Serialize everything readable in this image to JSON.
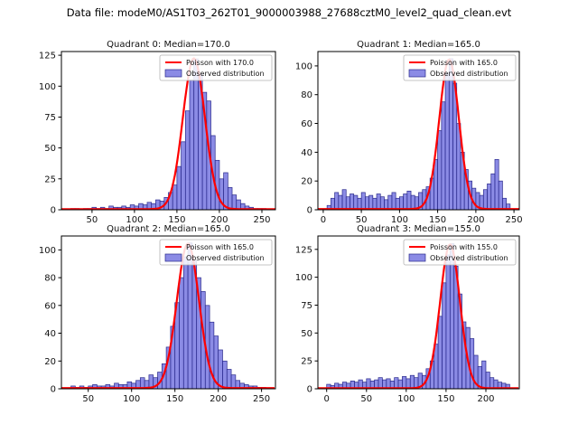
{
  "figure_title": "Data file: modeM0/AS1T03_262T01_9000003988_27688cztM0_level2_quad_clean.evt",
  "colors": {
    "hist_fill": "rgba(100,100,220,0.75)",
    "hist_edge": "#2a2a8c",
    "curve": "#ff0000",
    "axis": "#000000",
    "legend_border": "#b3b3b3"
  },
  "chart_data": [
    {
      "type": "bar",
      "title": "Quadrant 0: Median=170.0",
      "median": 170.0,
      "legend": [
        "Poisson with 170.0",
        "Observed distribution"
      ],
      "xlabel": "",
      "ylabel": "",
      "xlim": [
        14,
        266
      ],
      "ylim": [
        0,
        128
      ],
      "xticks": [
        50,
        100,
        150,
        200,
        250
      ],
      "yticks": [
        0,
        25,
        50,
        75,
        100,
        125
      ],
      "bins": {
        "start": 25,
        "width": 5,
        "counts": [
          1,
          1,
          0,
          1,
          1,
          2,
          1,
          2,
          1,
          3,
          2,
          2,
          3,
          2,
          4,
          3,
          5,
          4,
          6,
          5,
          8,
          7,
          10,
          14,
          20,
          35,
          55,
          80,
          105,
          122,
          110,
          95,
          88,
          60,
          40,
          25,
          30,
          18,
          12,
          8,
          5,
          3,
          2,
          1,
          1,
          1
        ]
      },
      "curve": {
        "center": 170,
        "sigma": 13.0,
        "amplitude": 122,
        "baseline": 0.5
      }
    },
    {
      "type": "bar",
      "title": "Quadrant 1: Median=165.0",
      "median": 165.0,
      "legend": [
        "Poisson with 165.0",
        "Observed distribution"
      ],
      "xlabel": "",
      "ylabel": "",
      "xlim": [
        -7,
        257
      ],
      "ylim": [
        0,
        110
      ],
      "xticks": [
        0,
        50,
        100,
        150,
        200,
        250
      ],
      "yticks": [
        0,
        20,
        40,
        60,
        80,
        100
      ],
      "bins": {
        "start": 5,
        "width": 5,
        "counts": [
          3,
          8,
          12,
          10,
          14,
          9,
          11,
          10,
          8,
          12,
          9,
          10,
          8,
          11,
          9,
          7,
          10,
          12,
          8,
          9,
          11,
          13,
          10,
          9,
          12,
          14,
          16,
          22,
          35,
          55,
          75,
          95,
          105,
          88,
          60,
          40,
          28,
          20,
          15,
          12,
          10,
          14,
          18,
          25,
          35,
          20,
          8,
          4
        ]
      },
      "curve": {
        "center": 165,
        "sigma": 12.8,
        "amplitude": 104,
        "baseline": 0.5
      }
    },
    {
      "type": "bar",
      "title": "Quadrant 2: Median=165.0",
      "median": 165.0,
      "legend": [
        "Poisson with 165.0",
        "Observed distribution"
      ],
      "xlabel": "",
      "ylabel": "",
      "xlim": [
        19,
        266
      ],
      "ylim": [
        0,
        110
      ],
      "xticks": [
        50,
        100,
        150,
        200,
        250
      ],
      "yticks": [
        0,
        20,
        40,
        60,
        80,
        100
      ],
      "bins": {
        "start": 30,
        "width": 5,
        "counts": [
          2,
          1,
          2,
          1,
          2,
          3,
          2,
          2,
          3,
          2,
          4,
          3,
          3,
          5,
          4,
          6,
          8,
          6,
          10,
          8,
          12,
          18,
          30,
          45,
          62,
          80,
          95,
          105,
          92,
          80,
          70,
          60,
          48,
          38,
          28,
          20,
          14,
          10,
          6,
          4,
          3,
          2,
          2,
          1,
          1
        ]
      },
      "curve": {
        "center": 165,
        "sigma": 12.8,
        "amplitude": 104,
        "baseline": 0.5
      }
    },
    {
      "type": "bar",
      "title": "Quadrant 3: Median=155.0",
      "median": 155.0,
      "legend": [
        "Poisson with 155.0",
        "Observed distribution"
      ],
      "xlabel": "",
      "ylabel": "",
      "xlim": [
        -11,
        242
      ],
      "ylim": [
        0,
        137
      ],
      "xticks": [
        0,
        50,
        100,
        150,
        200
      ],
      "yticks": [
        0,
        25,
        50,
        75,
        100,
        125
      ],
      "bins": {
        "start": 0,
        "width": 5,
        "counts": [
          4,
          3,
          5,
          4,
          6,
          5,
          7,
          6,
          8,
          6,
          9,
          7,
          8,
          10,
          8,
          9,
          7,
          10,
          8,
          11,
          9,
          12,
          10,
          14,
          12,
          18,
          25,
          40,
          65,
          95,
          120,
          130,
          110,
          85,
          60,
          55,
          45,
          30,
          20,
          25,
          15,
          10,
          8,
          6,
          5,
          4
        ]
      },
      "curve": {
        "center": 155,
        "sigma": 12.4,
        "amplitude": 129,
        "baseline": 0.5
      }
    }
  ]
}
